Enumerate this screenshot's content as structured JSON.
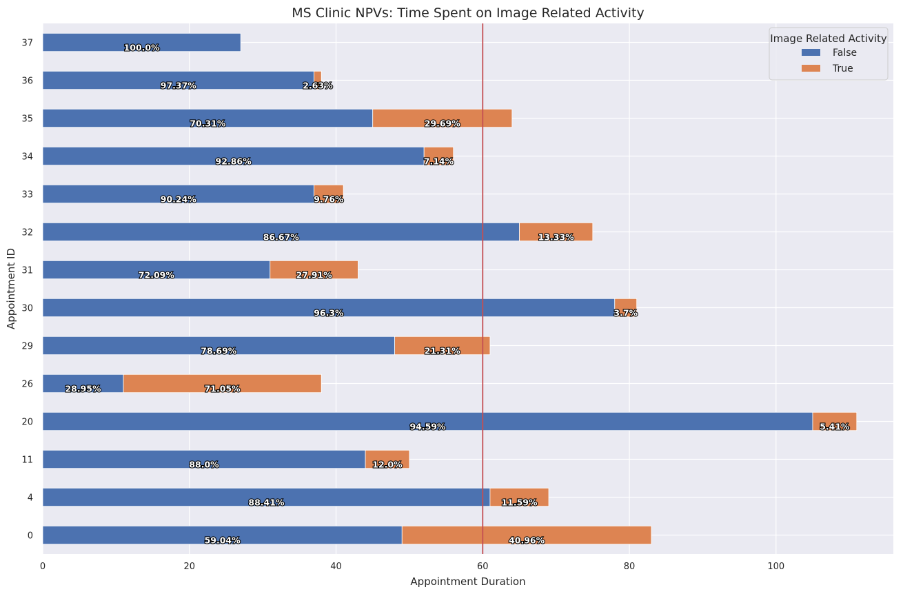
{
  "chart_data": {
    "type": "bar",
    "orientation": "horizontal",
    "stacked": true,
    "title": "MS Clinic NPVs: Time Spent on Image Related Activity",
    "xlabel": "Appointment Duration",
    "ylabel": "Appointment ID",
    "xlim": [
      0,
      116
    ],
    "xticks": [
      0,
      20,
      40,
      60,
      80,
      100
    ],
    "grid": true,
    "reference_line": {
      "x": 60,
      "color": "#c44e52"
    },
    "legend": {
      "title": "Image Related Activity",
      "position": "top-right"
    },
    "categories": [
      "0",
      "4",
      "11",
      "20",
      "26",
      "29",
      "30",
      "31",
      "32",
      "33",
      "34",
      "35",
      "36",
      "37"
    ],
    "series": [
      {
        "name": "False",
        "color": "#4c72b0",
        "values": [
          49,
          61,
          44,
          105,
          11,
          48,
          78,
          31,
          65,
          37,
          52,
          45,
          37,
          27
        ],
        "labels": [
          "59.04%",
          "88.41%",
          "88.0%",
          "94.59%",
          "28.95%",
          "78.69%",
          "96.3%",
          "72.09%",
          "86.67%",
          "90.24%",
          "92.86%",
          "70.31%",
          "97.37%",
          "100.0%"
        ]
      },
      {
        "name": "True",
        "color": "#dd8452",
        "values": [
          34,
          8,
          6,
          6,
          27,
          13,
          3,
          12,
          10,
          4,
          4,
          19,
          1,
          0
        ],
        "labels": [
          "40.96%",
          "11.59%",
          "12.0%",
          "5.41%",
          "71.05%",
          "21.31%",
          "3.7%",
          "27.91%",
          "13.33%",
          "9.76%",
          "7.14%",
          "29.69%",
          "2.63%",
          ""
        ]
      }
    ]
  }
}
